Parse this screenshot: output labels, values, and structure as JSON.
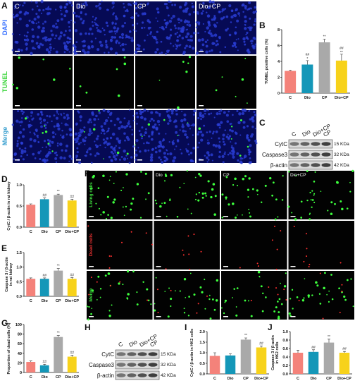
{
  "figure": {
    "panel_letters": [
      "A",
      "B",
      "C",
      "D",
      "E",
      "F",
      "G",
      "H",
      "I",
      "J"
    ],
    "tunel_images": {
      "columns": [
        "C",
        "Dio",
        "CP",
        "Dio+CP"
      ],
      "rows": [
        "DAPI",
        "TUNEL",
        "Merge"
      ]
    },
    "live_dead_images": {
      "columns": [
        "Dio",
        "CP",
        "Dio+CP"
      ],
      "rows": [
        "Living cells",
        "Dead cells",
        "Merge"
      ]
    },
    "blot_C": {
      "lanes": [
        "C",
        "Dio",
        "Dio+CP",
        "CP"
      ],
      "proteins": [
        "CytC",
        "Caspase3",
        "β-actin"
      ],
      "sizes": [
        "15 KDa",
        "32 KDa",
        "42 KDa"
      ]
    },
    "blot_H": {
      "lanes": [
        "C",
        "Dio",
        "Dio+CP",
        "CP"
      ],
      "proteins": [
        "CytC",
        "Caspase3",
        "β-actin"
      ],
      "sizes": [
        "15 KDa",
        "32 KDa",
        "42 KDa"
      ]
    }
  },
  "chart_data": [
    {
      "type": "bar",
      "y_label": [
        "TUNEL positive cells (%)"
      ],
      "categories": [
        "C",
        "Dio",
        "CP",
        "Dio+CP"
      ],
      "values": [
        2.8,
        3.6,
        6.4,
        4.1
      ],
      "errors": [
        0.1,
        0.5,
        0.4,
        0.8
      ],
      "colors": [
        "#f4827a",
        "#1497b8",
        "#a9a9a9",
        "#f7d21a"
      ],
      "annotations": [
        null,
        "##",
        "**",
        "##"
      ],
      "annotations_2": [
        null,
        "*",
        null,
        "**"
      ],
      "ylim": [
        0,
        8
      ],
      "yticks": [
        0,
        2,
        4,
        6,
        8
      ]
    },
    {
      "type": "bar",
      "y_label": [
        "CytC / β-actin in rat kidney"
      ],
      "categories": [
        "C",
        "Dio",
        "CP",
        "Dio+CP"
      ],
      "values": [
        0.53,
        0.66,
        0.76,
        0.63
      ],
      "errors": [
        0.02,
        0.03,
        0.02,
        0.03
      ],
      "colors": [
        "#f4827a",
        "#1497b8",
        "#a9a9a9",
        "#f7d21a"
      ],
      "annotations": [
        null,
        "##",
        "**",
        "##"
      ],
      "ylim": [
        0,
        1.0
      ],
      "yticks": [
        {
          "value": 0,
          "label": "0.0"
        },
        0.5,
        {
          "value": 1,
          "label": "1.0"
        }
      ]
    },
    {
      "type": "bar",
      "y_label": [
        "Caspase 3 / β-actin",
        "in rat kidney"
      ],
      "categories": [
        "C",
        "Dio",
        "CP",
        "Dio+CP"
      ],
      "values": [
        0.6,
        0.6,
        0.88,
        0.6
      ],
      "errors": [
        0.03,
        0.03,
        0.07,
        0.04
      ],
      "colors": [
        "#f4827a",
        "#1497b8",
        "#a9a9a9",
        "#f7d21a"
      ],
      "annotations": [
        null,
        "##",
        "**",
        "##"
      ],
      "ylim": [
        0,
        1.5
      ],
      "yticks": [
        {
          "value": 0,
          "label": "0.0"
        },
        0.5,
        {
          "value": 1,
          "label": "1.0"
        },
        1.5
      ]
    },
    {
      "type": "bar",
      "y_label": [
        "Proportion of dead cells (%)"
      ],
      "categories": [
        "C",
        "Dio",
        "CP",
        "Dio+CP"
      ],
      "values": [
        22,
        15,
        74,
        33
      ],
      "errors": [
        2,
        2,
        3,
        3
      ],
      "colors": [
        "#f4827a",
        "#1497b8",
        "#a9a9a9",
        "#f7d21a"
      ],
      "annotations": [
        null,
        "##",
        "**",
        "##"
      ],
      "ylim": [
        0,
        100
      ],
      "yticks": [
        0,
        20,
        40,
        60,
        80,
        100
      ]
    },
    {
      "type": "bar",
      "y_label": [
        "CytC / β-actin in HK2 cells"
      ],
      "categories": [
        "C",
        "Dio",
        "CP",
        "Dio+CP"
      ],
      "values": [
        0.85,
        0.87,
        1.62,
        1.25
      ],
      "errors": [
        0.15,
        0.08,
        0.08,
        0.07
      ],
      "colors": [
        "#f4827a",
        "#1497b8",
        "#a9a9a9",
        "#f7d21a"
      ],
      "annotations": [
        null,
        null,
        "**",
        "##"
      ],
      "ylim": [
        0,
        2.0
      ],
      "yticks": [
        {
          "value": 0,
          "label": "0.0"
        },
        0.5,
        {
          "value": 1,
          "label": "1.0"
        },
        1.5,
        {
          "value": 2,
          "label": "2.0"
        }
      ]
    },
    {
      "type": "bar",
      "y_label": [
        "Caspase 3 / β-actin",
        "in HK2 cells"
      ],
      "categories": [
        "C",
        "Dio",
        "CP",
        "Dio+CP"
      ],
      "values": [
        0.5,
        0.52,
        0.74,
        0.5
      ],
      "errors": [
        0.06,
        0.05,
        0.08,
        0.03
      ],
      "colors": [
        "#f4827a",
        "#1497b8",
        "#a9a9a9",
        "#f7d21a"
      ],
      "annotations": [
        null,
        "##",
        "**",
        "##"
      ],
      "ylim": [
        0,
        1.0
      ],
      "yticks": [
        {
          "value": 0,
          "label": "0.0"
        },
        0.2,
        0.4,
        0.6,
        0.8,
        {
          "value": 1,
          "label": "1.0"
        }
      ]
    }
  ]
}
